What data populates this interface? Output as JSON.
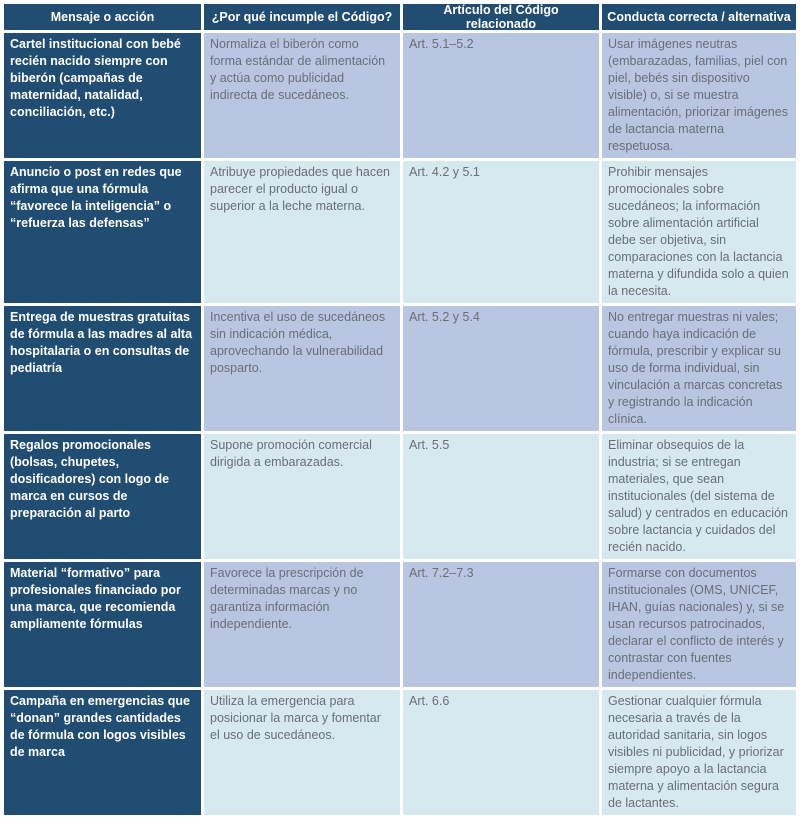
{
  "table": {
    "headers": [
      "Mensaje o acción",
      "¿Por qué incumple el Código?",
      "Artículo del Código relacionado",
      "Conducta correcta / alternativa"
    ],
    "rows": [
      {
        "mensaje": "Cartel institucional con bebé recién nacido siempre con biberón (campañas de maternidad, natalidad, conciliación, etc.)",
        "por_que": "Normaliza el biberón como forma estándar de alimentación y actúa como publicidad indirecta de sucedáneos.",
        "articulo": "Art. 5.1–5.2",
        "conducta": "Usar imágenes neutras (embarazadas, familias, piel con piel, bebés sin dispositivo visible) o, si se muestra alimentación, priorizar imágenes de lactancia materna respetuosa."
      },
      {
        "mensaje": "Anuncio o post en redes que afirma que una fórmula “favorece la inteligencia” o “refuerza las defensas”",
        "por_que": "Atribuye propiedades que hacen parecer el producto igual o superior a la leche materna.",
        "articulo": "Art. 4.2 y 5.1",
        "conducta": "Prohibir mensajes promocionales sobre sucedáneos; la información sobre alimentación artificial debe ser objetiva, sin comparaciones con la lactancia materna y difundida solo a quien la necesita."
      },
      {
        "mensaje": "Entrega de muestras gratuitas de fórmula a las madres al alta hospitalaria o en consultas de pediatría",
        "por_que": "Incentiva el uso de sucedáneos sin indicación médica, aprovechando la vulnerabilidad posparto.",
        "articulo": "Art. 5.2 y 5.4",
        "conducta": "No entregar muestras ni vales; cuando haya indicación de fórmula, prescribir y explicar su uso de forma individual, sin vinculación a marcas concretas y registrando la indicación clínica."
      },
      {
        "mensaje": "Regalos promocionales (bolsas, chupetes, dosificadores) con logo de marca en cursos de preparación al parto",
        "por_que": "Supone promoción comercial dirigida a embarazadas.",
        "articulo": "Art. 5.5",
        "conducta": "Eliminar obsequios de la industria; si se entregan materiales, que sean institucionales (del sistema de salud) y centrados en educación sobre lactancia y cuidados del recién nacido."
      },
      {
        "mensaje": "Material “formativo” para profesionales financiado por una marca, que recomienda ampliamente fórmulas",
        "por_que": "Favorece la prescripción de determinadas marcas y no garantiza información independiente.",
        "articulo": "Art. 7.2–7.3",
        "conducta": "Formarse con documentos institucionales (OMS, UNICEF, IHAN, guías nacionales) y, si se usan recursos patrocinados, declarar el conflicto de interés y contrastar con fuentes independientes."
      },
      {
        "mensaje": "Campaña en emergencias que “donan” grandes cantidades de fórmula con logos visibles de marca",
        "por_que": "Utiliza la emergencia para posicionar la marca y fomentar el uso de sucedáneos.",
        "articulo": "Art. 6.6",
        "conducta": "Gestionar cualquier fórmula necesaria a través de la autoridad sanitaria, sin logos visibles ni publicidad, y priorizar siempre apoyo a la lactancia materna y alimentación segura de lactantes."
      }
    ]
  },
  "colors": {
    "header_bg": "#224d73",
    "header_text": "#ffffff",
    "row_lavender_bg": "#b8c6e2",
    "row_cyan_bg": "#d6e9ef",
    "body_text": "#6a6f77",
    "grid_gap": "#ffffff"
  }
}
